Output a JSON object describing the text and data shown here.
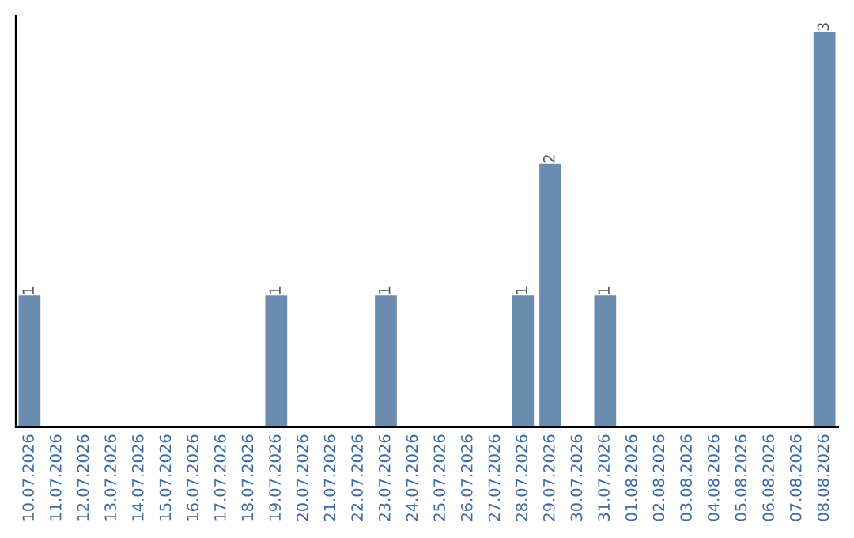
{
  "chart_data": {
    "type": "bar",
    "categories": [
      "10.07.2026",
      "11.07.2026",
      "12.07.2026",
      "13.07.2026",
      "14.07.2026",
      "15.07.2026",
      "16.07.2026",
      "17.07.2026",
      "18.07.2026",
      "19.07.2026",
      "20.07.2026",
      "21.07.2026",
      "22.07.2026",
      "23.07.2026",
      "24.07.2026",
      "25.07.2026",
      "26.07.2026",
      "27.07.2026",
      "28.07.2026",
      "29.07.2026",
      "30.07.2026",
      "31.07.2026",
      "01.08.2026",
      "02.08.2026",
      "03.08.2026",
      "04.08.2026",
      "05.08.2026",
      "06.08.2026",
      "07.08.2026",
      "08.08.2026"
    ],
    "values": [
      1,
      0,
      0,
      0,
      0,
      0,
      0,
      0,
      0,
      1,
      0,
      0,
      0,
      1,
      0,
      0,
      0,
      0,
      1,
      2,
      0,
      1,
      0,
      0,
      0,
      0,
      0,
      0,
      0,
      3
    ],
    "value_labels": [
      "1",
      null,
      null,
      null,
      null,
      null,
      null,
      null,
      null,
      "1",
      null,
      null,
      null,
      "1",
      null,
      null,
      null,
      null,
      "1",
      "2",
      null,
      "1",
      null,
      null,
      null,
      null,
      null,
      null,
      null,
      "3"
    ],
    "color": "#6a8caf",
    "grid": false,
    "legend": false
  }
}
